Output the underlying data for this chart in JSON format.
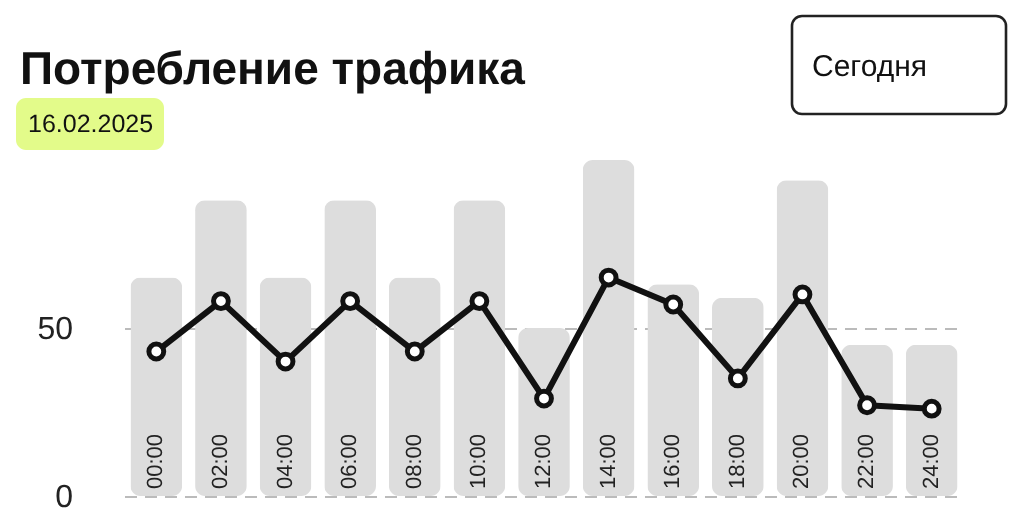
{
  "chart_data": {
    "type": "bar",
    "title": "Потребление трафика",
    "subtitle": "16.02.2025",
    "annotations": [
      "Сегодня"
    ],
    "categories": [
      "00:00",
      "02:00",
      "04:00",
      "06:00",
      "08:00",
      "10:00",
      "12:00",
      "14:00",
      "16:00",
      "18:00",
      "20:00",
      "22:00",
      "24:00"
    ],
    "series": [
      {
        "color": "#dddddd",
        "values": [
          65,
          88,
          65,
          88,
          65,
          88,
          50,
          100,
          63,
          59,
          94,
          45,
          45
        ]
      },
      {
        "type": "line",
        "color": "#111111",
        "marker": "circle",
        "values": [
          43,
          58,
          40,
          58,
          43,
          58,
          29,
          65,
          57,
          35,
          60,
          27,
          26
        ]
      }
    ],
    "ylim": [
      0,
      100
    ],
    "yticks": [
      0,
      50
    ],
    "grid": "y"
  }
}
